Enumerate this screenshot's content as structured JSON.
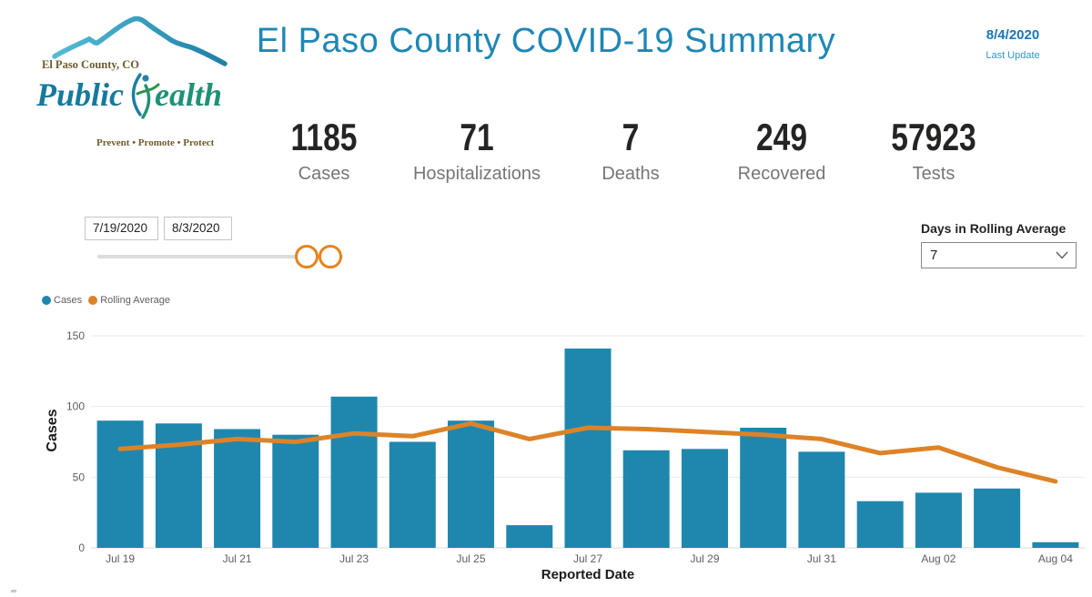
{
  "header": {
    "title": "El Paso County COVID-19 Summary",
    "last_update_date": "8/4/2020",
    "last_update_label": "Last Update"
  },
  "logo": {
    "org_line": "El Paso County, CO",
    "name_part1": "Public",
    "name_part2": "ealth",
    "tagline": "Prevent • Promote • Protect"
  },
  "stats": [
    {
      "value": "1185",
      "label": "Cases"
    },
    {
      "value": "71",
      "label": "Hospitalizations"
    },
    {
      "value": "7",
      "label": "Deaths"
    },
    {
      "value": "249",
      "label": "Recovered"
    },
    {
      "value": "57923",
      "label": "Tests"
    }
  ],
  "date_slicer": {
    "start_date": "7/19/2020",
    "end_date": "8/3/2020"
  },
  "rolling_control": {
    "label": "Days in Rolling Average",
    "selected_value": "7"
  },
  "legend": [
    {
      "label": "Cases",
      "color": "#1F87AE"
    },
    {
      "label": "Rolling Average",
      "color": "#DD8327"
    }
  ],
  "colors": {
    "title_teal": "#1E87B6",
    "link_blue": "#1878B8",
    "bar_blue": "#1F87AE",
    "line_orange": "#DD8327",
    "slider_orange": "#E8821E",
    "axis_text": "#605E5C",
    "gridline": "#EBEBEB"
  },
  "chart_data": {
    "type": "bar",
    "title": "",
    "xlabel": "Reported Date",
    "ylabel": "Cases",
    "ylim": [
      0,
      150
    ],
    "yticks": [
      0,
      50,
      100,
      150
    ],
    "grid": "horizontal",
    "legend_position": "top-left",
    "categories": [
      "Jul 19",
      "Jul 20",
      "Jul 21",
      "Jul 22",
      "Jul 23",
      "Jul 24",
      "Jul 25",
      "Jul 26",
      "Jul 27",
      "Jul 28",
      "Jul 29",
      "Jul 30",
      "Jul 31",
      "Aug 01",
      "Aug 02",
      "Aug 03",
      "Aug 04"
    ],
    "xtick_labels_shown": [
      "Jul 19",
      "Jul 21",
      "Jul 23",
      "Jul 25",
      "Jul 27",
      "Jul 29",
      "Jul 31",
      "Aug 02",
      "Aug 04"
    ],
    "series": [
      {
        "name": "Cases",
        "type": "bar",
        "color": "#1F87AE",
        "values": [
          90,
          88,
          84,
          80,
          107,
          75,
          90,
          16,
          141,
          69,
          70,
          85,
          68,
          33,
          39,
          42,
          4
        ]
      },
      {
        "name": "Rolling Average",
        "type": "line",
        "color": "#DD8327",
        "values": [
          70,
          73,
          77,
          75,
          81,
          79,
          88,
          77,
          85,
          84,
          82,
          80,
          77,
          67,
          71,
          57,
          47
        ]
      }
    ]
  }
}
